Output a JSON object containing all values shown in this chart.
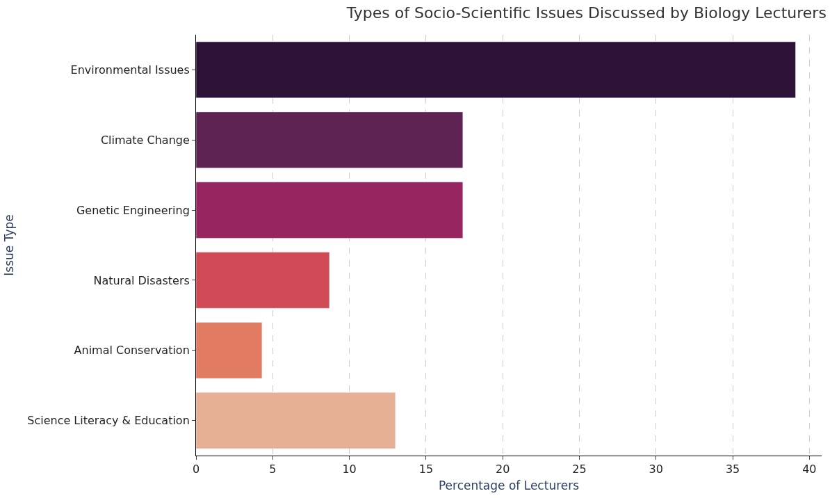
{
  "chart_data": {
    "type": "bar",
    "orientation": "horizontal",
    "title": "Types of Socio-Scientific Issues Discussed by Biology Lecturers",
    "xlabel": "Percentage of Lecturers",
    "ylabel": "Issue Type",
    "categories": [
      "Environmental Issues",
      "Climate Change",
      "Genetic Engineering",
      "Natural Disasters",
      "Animal Conservation",
      "Science Literacy & Education"
    ],
    "values": [
      39.1,
      17.4,
      17.4,
      8.7,
      4.3,
      13.0
    ],
    "colors": [
      "#2d1136",
      "#5f2353",
      "#962560",
      "#cf4a55",
      "#e17c62",
      "#e6b095"
    ],
    "xlim": [
      0,
      40.8
    ],
    "xticks": [
      0,
      5,
      10,
      15,
      20,
      25,
      30,
      35,
      40
    ],
    "grid": "x"
  }
}
